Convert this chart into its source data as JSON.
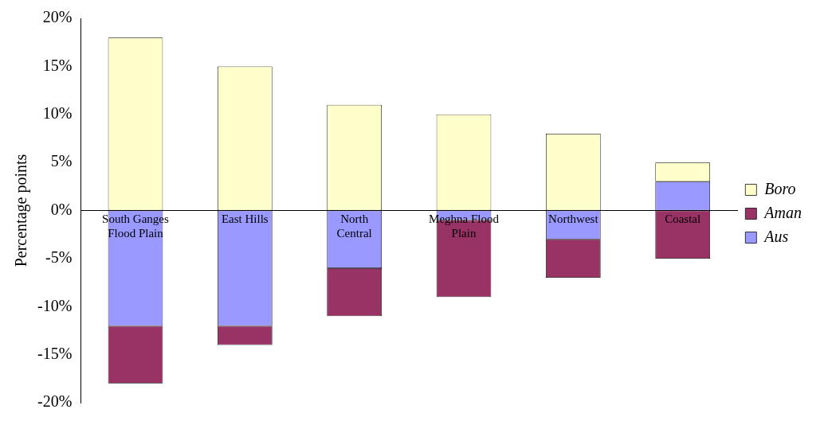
{
  "chart_data": {
    "type": "bar",
    "ylabel": "Percentage points",
    "categories": [
      "South Ganges Flood Plain",
      "East Hills",
      "North Central",
      "Meghna Flood Plain",
      "Northwest",
      "Coastal"
    ],
    "series": [
      {
        "name": "Aus",
        "color": "#9999ff",
        "values": [
          -12,
          -12,
          -6,
          -1,
          -3,
          3
        ]
      },
      {
        "name": "Aman",
        "color": "#993366",
        "values": [
          -6,
          -2,
          -5,
          -8,
          -4,
          -5
        ]
      },
      {
        "name": "Boro",
        "color": "#ffffcc",
        "values": [
          18,
          15,
          11,
          10,
          8,
          2
        ]
      }
    ],
    "stacked": true,
    "ylim": [
      -20,
      20
    ],
    "yticks": [
      {
        "value": -20,
        "label": "-20%"
      },
      {
        "value": -15,
        "label": "-15%"
      },
      {
        "value": -10,
        "label": "-10%"
      },
      {
        "value": -5,
        "label": "-5%"
      },
      {
        "value": 0,
        "label": "0%"
      },
      {
        "value": 5,
        "label": "5%"
      },
      {
        "value": 10,
        "label": "10%"
      },
      {
        "value": 15,
        "label": "15%"
      },
      {
        "value": 20,
        "label": "20%"
      }
    ],
    "grid": false,
    "legend": "right"
  }
}
